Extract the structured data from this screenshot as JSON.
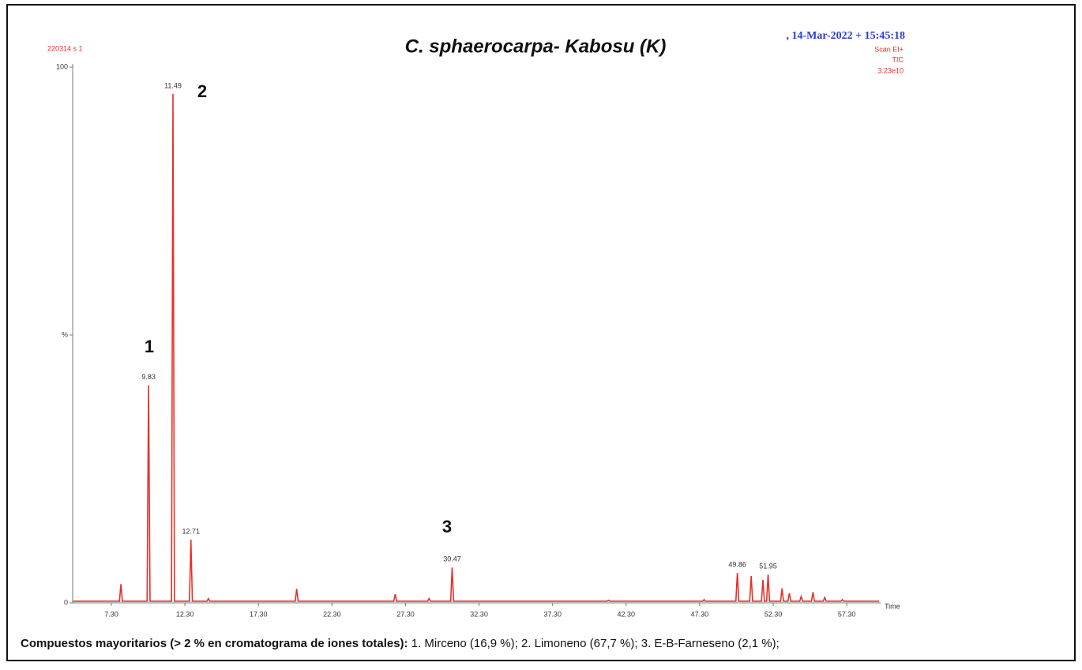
{
  "chart_data": {
    "type": "line",
    "title": "C. sphaerocarpa- Kabosu (K)",
    "sample_id": "220314 s 1",
    "timestamp": ", 14-Mar-2022 + 15:45:18",
    "scan_mode": "Scan EI+",
    "trace": "TIC",
    "full_scale": "3.23e10",
    "xlabel": "Time",
    "color": "#e8302a",
    "grid": false,
    "xlim": [
      4.67,
      59.6
    ],
    "ylim": [
      0,
      100
    ],
    "xticks": [
      {
        "value": 7.3,
        "label": "7.30"
      },
      {
        "value": 12.3,
        "label": "12.30"
      },
      {
        "value": 17.3,
        "label": "17.30"
      },
      {
        "value": 22.3,
        "label": "22.30"
      },
      {
        "value": 27.3,
        "label": "27.30"
      },
      {
        "value": 32.3,
        "label": "32.30"
      },
      {
        "value": 37.3,
        "label": "37.30"
      },
      {
        "value": 42.3,
        "label": "42.30"
      },
      {
        "value": 47.3,
        "label": "47.30"
      },
      {
        "value": 52.3,
        "label": "52.30"
      },
      {
        "value": 57.3,
        "label": "57.30"
      }
    ],
    "yticks": [
      0,
      {
        "value": 50,
        "label": "%"
      },
      100
    ],
    "x": [
      4.7,
      7.85,
      7.95,
      8.05,
      9.73,
      9.83,
      9.93,
      11.39,
      11.49,
      11.59,
      12.61,
      12.71,
      12.81,
      13.8,
      13.9,
      14.0,
      19.8,
      19.9,
      20.0,
      26.5,
      26.6,
      26.7,
      28.8,
      28.9,
      29.0,
      30.37,
      30.47,
      30.57,
      41.0,
      41.1,
      41.2,
      47.5,
      47.6,
      47.7,
      49.76,
      49.86,
      49.96,
      50.7,
      50.8,
      50.9,
      51.5,
      51.6,
      51.7,
      51.85,
      51.95,
      52.05,
      52.8,
      52.9,
      53.0,
      53.3,
      53.4,
      53.5,
      54.1,
      54.2,
      54.3,
      54.9,
      55.0,
      55.1,
      55.7,
      55.8,
      55.9,
      56.9,
      57.0,
      57.1,
      59.5
    ],
    "values": [
      0.3,
      0.3,
      3.5,
      0.3,
      0.3,
      40.6,
      0.3,
      0.3,
      95,
      0.3,
      0.3,
      11.8,
      0.3,
      0.3,
      0.8,
      0.3,
      0.3,
      2.6,
      0.3,
      0.3,
      1.6,
      0.3,
      0.3,
      0.8,
      0.3,
      0.3,
      6.6,
      0.3,
      0.3,
      0.5,
      0.3,
      0.3,
      0.6,
      0.3,
      0.3,
      5.6,
      0.3,
      0.3,
      5.0,
      0.3,
      0.3,
      4.3,
      0.3,
      0.3,
      5.3,
      0.3,
      0.3,
      2.7,
      0.3,
      0.3,
      1.8,
      0.3,
      0.3,
      1.2,
      0.3,
      0.3,
      2.0,
      0.3,
      0.3,
      1.0,
      0.3,
      0.3,
      0.6,
      0.3,
      0.3
    ],
    "labeled_peaks": [
      9.83,
      11.49,
      12.71,
      30.47,
      49.86,
      51.95
    ],
    "peak_numbers": [
      "1",
      "2",
      "3"
    ],
    "caption_bold": "Compuestos mayoritarios (> 2 % en cromatograma de iones totales):",
    "caption": "1. Mirceno  (16,9 %); 2. Limoneno (67,7 %); 3. E-B-Farneseno (2,1 %);"
  }
}
